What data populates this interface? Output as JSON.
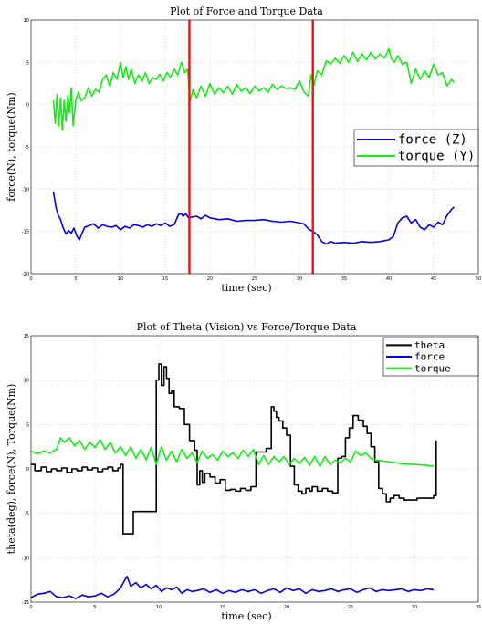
{
  "chart_data": [
    {
      "type": "line",
      "title": "Plot of Force and Torque Data",
      "xlabel": "time (sec)",
      "ylabel": "force(N), torque(Nm)",
      "xlim": [
        0,
        50
      ],
      "ylim": [
        -20,
        10
      ],
      "xticks": [
        0,
        5,
        10,
        15,
        20,
        25,
        30,
        35,
        40,
        45,
        50
      ],
      "yticks": [
        -20,
        -15,
        -10,
        -5,
        0,
        5,
        10
      ],
      "grid": true,
      "legend_position": "right",
      "vertical_markers": [
        17.7,
        31.5
      ],
      "marker_color": "#ee1111",
      "series": [
        {
          "name": "force (Z)",
          "color": "#0000ee",
          "x": [
            2.5,
            2.8,
            3,
            3.3,
            3.6,
            3.9,
            4.2,
            4.5,
            4.8,
            5.1,
            5.4,
            5.7,
            6,
            6.5,
            7,
            7.5,
            8,
            8.5,
            9,
            9.5,
            10,
            10.5,
            11,
            11.5,
            12,
            12.5,
            13,
            13.5,
            14,
            14.5,
            15,
            15.5,
            16,
            16.5,
            16.8,
            17,
            17.3,
            17.6,
            18,
            18.5,
            19,
            19.5,
            20,
            21,
            22,
            23,
            24,
            25,
            26,
            27,
            28,
            29,
            30,
            30.5,
            31,
            31.5,
            32,
            32.5,
            33,
            33.5,
            34,
            35,
            36,
            37,
            38,
            39,
            40,
            40.5,
            41,
            41.5,
            42,
            42.5,
            43,
            43.5,
            44,
            44.5,
            45,
            45.5,
            46,
            46.5,
            47,
            47.3
          ],
          "values": [
            -10.3,
            -12.2,
            -13,
            -13.6,
            -14.6,
            -15.3,
            -14.9,
            -15.2,
            -14.6,
            -15.5,
            -16,
            -15.2,
            -14.5,
            -14.3,
            -14.1,
            -14.6,
            -14.2,
            -14.4,
            -14.5,
            -14.3,
            -14.8,
            -14.4,
            -14.6,
            -14.2,
            -14.3,
            -14.5,
            -14.2,
            -14.4,
            -14.1,
            -14.3,
            -14.0,
            -14.4,
            -14.2,
            -13.0,
            -12.9,
            -13.2,
            -12.9,
            -13.4,
            -13.3,
            -13.2,
            -13.5,
            -13.1,
            -13.4,
            -13.6,
            -13.5,
            -13.8,
            -13.7,
            -13.7,
            -13.6,
            -13.8,
            -13.9,
            -13.8,
            -14.0,
            -14.1,
            -14.7,
            -15.0,
            -15.4,
            -16.2,
            -16.5,
            -16.2,
            -16.4,
            -16.3,
            -16.4,
            -16.2,
            -16.3,
            -16.2,
            -16.0,
            -15.6,
            -14.0,
            -13.4,
            -13.2,
            -14.0,
            -13.6,
            -14.5,
            -14.8,
            -14.2,
            -14.5,
            -13.9,
            -14.2,
            -13.1,
            -12.4,
            -12.1
          ]
        },
        {
          "name": "torque (Y)",
          "color": "#11ee11",
          "x": [
            2.5,
            2.7,
            2.9,
            3.1,
            3.3,
            3.5,
            3.7,
            3.9,
            4.1,
            4.3,
            4.5,
            4.7,
            5,
            5.3,
            5.6,
            6,
            6.4,
            6.8,
            7.2,
            7.6,
            8,
            8.4,
            8.8,
            9.2,
            9.6,
            10,
            10.3,
            10.6,
            10.9,
            11.2,
            11.6,
            12,
            12.4,
            12.8,
            13.2,
            13.6,
            14,
            14.4,
            14.8,
            15.2,
            15.6,
            16,
            16.4,
            16.8,
            17.2,
            17.5,
            17.8,
            18.1,
            18.5,
            19,
            19.5,
            20,
            20.5,
            21,
            21.5,
            22,
            22.5,
            23,
            23.5,
            24,
            24.5,
            25,
            25.5,
            26,
            26.5,
            27,
            27.5,
            28,
            28.5,
            29,
            29.5,
            30,
            30.5,
            31,
            31.3,
            31.6,
            32,
            32.5,
            33,
            33.5,
            34,
            34.5,
            35,
            35.5,
            36,
            36.5,
            37,
            37.5,
            38,
            38.5,
            39,
            39.5,
            40,
            40.3,
            40.6,
            41,
            41.5,
            42,
            42.5,
            43,
            43.5,
            44,
            44.5,
            45,
            45.5,
            46,
            46.5,
            47,
            47.3
          ],
          "values": [
            0.5,
            -2.2,
            1.2,
            -2.5,
            0.8,
            -3.0,
            0.5,
            -2.0,
            1.0,
            -1.0,
            2.0,
            -2.5,
            0.5,
            1.5,
            0.5,
            0.8,
            2.0,
            1.0,
            1.8,
            1.5,
            3.0,
            3.5,
            2.2,
            3.8,
            3.0,
            5.0,
            3.2,
            4.5,
            3.0,
            4.2,
            2.5,
            3.5,
            2.8,
            3.8,
            2.5,
            3.2,
            3.0,
            3.6,
            2.8,
            3.8,
            3.2,
            4.2,
            3.5,
            5.0,
            3.8,
            4.2,
            0.4,
            1.8,
            0.8,
            2.2,
            1.0,
            2.5,
            1.2,
            2.0,
            1.4,
            2.2,
            1.2,
            2.4,
            1.6,
            2.0,
            1.3,
            2.2,
            1.6,
            2.0,
            1.5,
            2.4,
            1.8,
            2.2,
            1.9,
            2.0,
            1.8,
            2.8,
            1.5,
            1.0,
            3.5,
            2.2,
            4.0,
            3.5,
            5.2,
            4.8,
            5.5,
            4.9,
            5.8,
            5.0,
            6.2,
            5.1,
            6.0,
            5.3,
            6.2,
            5.4,
            6.0,
            5.5,
            6.6,
            5.4,
            5.0,
            5.8,
            4.8,
            5.0,
            2.5,
            4.2,
            3.0,
            4.0,
            3.2,
            4.8,
            3.5,
            3.8,
            2.2,
            3.0,
            2.6
          ]
        }
      ]
    },
    {
      "type": "line",
      "title": "Plot of Theta (Vision) vs Force/Torque Data",
      "xlabel": "time (sec)",
      "ylabel": "theta(deg), force(N), Torque(Nm)",
      "xlim": [
        0,
        35
      ],
      "ylim": [
        -15,
        15
      ],
      "xticks": [
        0,
        5,
        10,
        15,
        20,
        25,
        30,
        35
      ],
      "yticks": [
        -15,
        -10,
        -5,
        0,
        5,
        10,
        15
      ],
      "grid": true,
      "legend_position": "top-right",
      "series": [
        {
          "name": "theta",
          "color": "#000000",
          "step": true,
          "x": [
            0,
            0.3,
            0.8,
            1.2,
            1.6,
            2.0,
            2.4,
            2.8,
            3.2,
            3.6,
            4.0,
            4.4,
            4.8,
            5.2,
            5.6,
            6.0,
            6.4,
            6.8,
            7.0,
            7.2,
            7.5,
            7.7,
            8.0,
            9.4,
            9.8,
            10.0,
            10.2,
            10.4,
            10.6,
            10.8,
            11.0,
            11.2,
            11.6,
            12.0,
            12.4,
            12.8,
            13.0,
            13.2,
            13.4,
            13.6,
            14.0,
            14.4,
            14.8,
            15.2,
            15.6,
            16.0,
            16.4,
            16.8,
            17.2,
            17.6,
            18.0,
            18.4,
            18.8,
            19.0,
            19.2,
            19.4,
            19.7,
            20.0,
            20.3,
            20.6,
            20.9,
            21.2,
            21.5,
            21.8,
            22.0,
            22.4,
            22.8,
            23.2,
            23.6,
            24.0,
            24.3,
            24.6,
            24.9,
            25.2,
            25.6,
            26.0,
            26.3,
            26.6,
            26.9,
            27.2,
            27.5,
            27.8,
            28.1,
            28.4,
            28.8,
            29.2,
            30.2,
            30.4,
            31.2,
            31.5,
            31.7
          ],
          "values": [
            0.5,
            -0.2,
            0.2,
            -0.3,
            0,
            -0.2,
            0.1,
            -0.4,
            0,
            -0.2,
            0.2,
            -0.1,
            0.1,
            -0.3,
            0,
            0.2,
            -0.2,
            0.1,
            0.5,
            -7.3,
            -7.3,
            -7.3,
            -4.8,
            -4.8,
            10.0,
            11.8,
            9.4,
            11.5,
            10.2,
            8.5,
            8.8,
            7.0,
            6.8,
            5.0,
            3.2,
            2.1,
            -1.8,
            -0.2,
            -1.5,
            -0.5,
            -0.9,
            -1.6,
            -1.2,
            -2.4,
            -2.3,
            -2.5,
            -2.2,
            -2.4,
            -2.0,
            1.9,
            1.9,
            2.3,
            7.0,
            6.5,
            5.8,
            5.4,
            4.6,
            3.8,
            0.3,
            -1.8,
            -2.5,
            -2.8,
            -2.2,
            -2.5,
            -2.0,
            -2.5,
            -2.2,
            -2.5,
            -2.7,
            1.2,
            1.4,
            3.5,
            4.6,
            6.0,
            5.5,
            4.8,
            4.0,
            2.5,
            0.8,
            -2.2,
            -2.8,
            -3.7,
            -3.3,
            -3.0,
            -3.3,
            -3.5,
            -3.3,
            -3.3,
            -3.3,
            -3.0,
            3.2
          ]
        },
        {
          "name": "force",
          "color": "#0000ee",
          "x": [
            0,
            0.5,
            1,
            1.5,
            2,
            2.5,
            3,
            3.5,
            4,
            4.5,
            5,
            5.5,
            6,
            6.5,
            7,
            7.3,
            7.5,
            7.8,
            8.2,
            8.6,
            9,
            9.4,
            9.8,
            10.2,
            10.6,
            11,
            11.4,
            11.8,
            12.2,
            12.6,
            13,
            13.5,
            14,
            14.5,
            15,
            15.5,
            16,
            16.5,
            17,
            17.5,
            18,
            18.5,
            19,
            19.5,
            20,
            20.5,
            21,
            21.5,
            22,
            22.5,
            23,
            23.5,
            24,
            24.5,
            25,
            25.5,
            26,
            26.5,
            27,
            27.5,
            28,
            28.5,
            29,
            29.5,
            30,
            30.5,
            31,
            31.5
          ],
          "values": [
            -14.5,
            -14.1,
            -14.0,
            -13.8,
            -14.4,
            -14.5,
            -14.3,
            -14.6,
            -14.2,
            -14.4,
            -14.3,
            -14.0,
            -14.4,
            -14.1,
            -13.4,
            -12.6,
            -12.1,
            -13.2,
            -12.8,
            -13.4,
            -13.0,
            -13.5,
            -13.1,
            -13.8,
            -13.4,
            -13.6,
            -13.3,
            -14.0,
            -13.6,
            -13.8,
            -13.7,
            -13.5,
            -13.9,
            -13.6,
            -14.0,
            -13.7,
            -13.9,
            -13.6,
            -13.8,
            -13.6,
            -14.0,
            -13.7,
            -13.5,
            -13.9,
            -13.4,
            -13.7,
            -13.5,
            -14.0,
            -13.6,
            -13.8,
            -13.7,
            -13.5,
            -13.8,
            -13.6,
            -13.5,
            -13.9,
            -13.6,
            -13.4,
            -13.8,
            -13.6,
            -13.7,
            -13.6,
            -13.5,
            -13.8,
            -13.6,
            -13.7,
            -13.5,
            -13.6
          ]
        },
        {
          "name": "torque",
          "color": "#11ee11",
          "x": [
            0,
            0.5,
            1,
            1.5,
            2,
            2.3,
            2.6,
            3,
            3.4,
            3.8,
            4.2,
            4.6,
            5,
            5.4,
            5.8,
            6.2,
            6.6,
            7,
            7.4,
            7.8,
            8.2,
            8.6,
            9,
            9.4,
            9.8,
            10.2,
            10.6,
            11,
            11.4,
            11.8,
            12.2,
            12.6,
            13,
            13.4,
            13.8,
            14.2,
            14.6,
            15,
            15.4,
            15.8,
            16.2,
            16.6,
            17,
            17.4,
            17.8,
            18.2,
            18.6,
            19,
            19.4,
            19.8,
            20.2,
            20.6,
            21,
            21.4,
            21.8,
            22.2,
            22.6,
            23,
            23.4,
            23.8,
            24.2,
            24.6,
            25,
            25.4,
            25.8,
            26.2,
            26.6,
            27,
            28,
            29,
            30,
            31,
            31.5
          ],
          "values": [
            2.0,
            1.7,
            2.0,
            1.8,
            2.2,
            3.5,
            3.0,
            3.5,
            2.6,
            3.2,
            2.2,
            3.0,
            2.4,
            3.3,
            2.2,
            3.0,
            1.8,
            2.5,
            1.5,
            2.5,
            1.2,
            2.2,
            1.0,
            2.4,
            0.5,
            2.5,
            1.0,
            2.0,
            0.8,
            2.2,
            1.2,
            1.8,
            0.7,
            2.0,
            1.2,
            1.6,
            1.0,
            2.0,
            1.4,
            1.8,
            1.2,
            2.1,
            1.4,
            2.2,
            0.5,
            1.5,
            0.5,
            1.4,
            0.8,
            1.4,
            0.5,
            1.2,
            0.6,
            1.3,
            0.4,
            1.4,
            0.3,
            1.4,
            0.5,
            1.0,
            0.7,
            1.2,
            0.8,
            2.0,
            1.5,
            1.8,
            1.2,
            1.0,
            0.8,
            0.6,
            0.5,
            0.4,
            0.3
          ]
        }
      ]
    }
  ]
}
